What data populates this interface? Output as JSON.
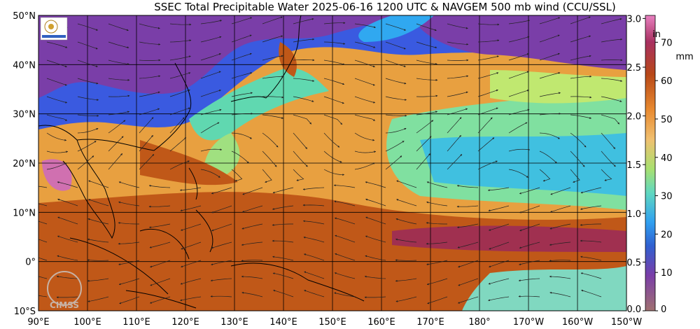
{
  "title": "SSEC Total Precipitable Water  2025-06-16 1200 UTC & NAVGEM 500 mb wind (CCU/SSL)",
  "map": {
    "lon_range": [
      90,
      210
    ],
    "lat_range": [
      -10,
      50
    ],
    "lat_ticks": [
      {
        "value": 50,
        "label": "50°N"
      },
      {
        "value": 40,
        "label": "40°N"
      },
      {
        "value": 30,
        "label": "30°N"
      },
      {
        "value": 20,
        "label": "20°N"
      },
      {
        "value": 10,
        "label": "10°N"
      },
      {
        "value": 0,
        "label": "0°"
      },
      {
        "value": -10,
        "label": "10°S"
      }
    ],
    "lon_ticks": [
      {
        "value": 90,
        "label": "90°E"
      },
      {
        "value": 100,
        "label": "100°E"
      },
      {
        "value": 110,
        "label": "110°E"
      },
      {
        "value": 120,
        "label": "120°E"
      },
      {
        "value": 130,
        "label": "130°E"
      },
      {
        "value": 140,
        "label": "140°E"
      },
      {
        "value": 150,
        "label": "150°E"
      },
      {
        "value": 160,
        "label": "160°E"
      },
      {
        "value": 170,
        "label": "170°E"
      },
      {
        "value": 180,
        "label": "180°"
      },
      {
        "value": 190,
        "label": "170°W"
      },
      {
        "value": 200,
        "label": "160°W"
      },
      {
        "value": 210,
        "label": "150°W"
      }
    ]
  },
  "colorbar": {
    "unit_in": "in",
    "unit_mm": "mm",
    "in_ticks": [
      {
        "value": 0.0,
        "label": "0.0"
      },
      {
        "value": 0.5,
        "label": "0.5"
      },
      {
        "value": 1.0,
        "label": "1.0"
      },
      {
        "value": 1.5,
        "label": "1.5"
      },
      {
        "value": 2.0,
        "label": "2.0"
      },
      {
        "value": 2.5,
        "label": "2.5"
      },
      {
        "value": 3.0,
        "label": "3.0"
      }
    ],
    "mm_ticks": [
      {
        "value": 0,
        "label": "0"
      },
      {
        "value": 10,
        "label": "10"
      },
      {
        "value": 20,
        "label": "20"
      },
      {
        "value": 30,
        "label": "30"
      },
      {
        "value": 40,
        "label": "40"
      },
      {
        "value": 50,
        "label": "50"
      },
      {
        "value": 60,
        "label": "60"
      },
      {
        "value": 70,
        "label": "70"
      }
    ],
    "max_mm": 77,
    "colors": [
      "#b08070",
      "#9a50a8",
      "#7a3ea8",
      "#3060e0",
      "#30b0f0",
      "#70e0a0",
      "#c8e870",
      "#f0b050",
      "#e07020",
      "#b84010",
      "#a03050",
      "#e060b0"
    ]
  },
  "watermark": "CIMSS"
}
